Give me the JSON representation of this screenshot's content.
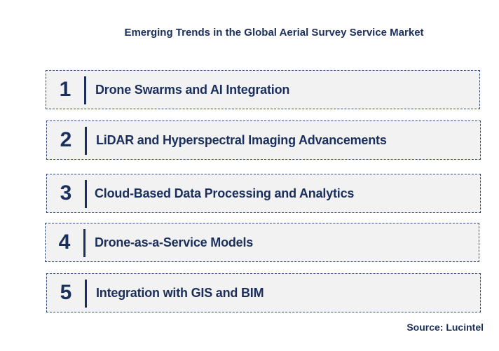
{
  "title": "Emerging Trends in the Global Aerial Survey Service Market",
  "trends": [
    {
      "number": "1",
      "label": "Drone Swarms and AI Integration"
    },
    {
      "number": "2",
      "label": "LiDAR and Hyperspectral Imaging Advancements"
    },
    {
      "number": "3",
      "label": "Cloud-Based Data Processing and Analytics"
    },
    {
      "number": "4",
      "label": "Drone-as-a-Service Models"
    },
    {
      "number": "5",
      "label": "Integration with GIS and BIM"
    }
  ],
  "source": "Source: Lucintel",
  "colors": {
    "text": "#1b2f5c",
    "box_fill": "#f2f2f2",
    "box_border": "#2e4a7a"
  }
}
